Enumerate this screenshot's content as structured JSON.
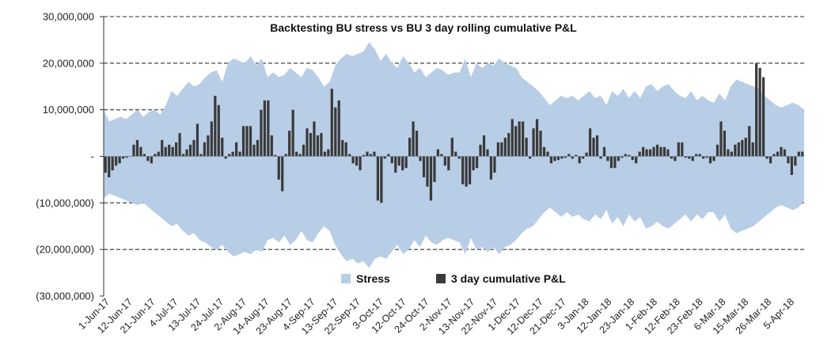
{
  "chart_data": {
    "type": "bar",
    "title": "Backtesting BU stress vs BU 3 day rolling cumulative P&L",
    "xlabel": "",
    "ylabel": "",
    "ylim": [
      -30000000,
      30000000
    ],
    "yticks": [
      {
        "value": 30000000,
        "label": "30,000,000"
      },
      {
        "value": 20000000,
        "label": "20,000,000"
      },
      {
        "value": 10000000,
        "label": "10,000,000"
      },
      {
        "value": 0,
        "label": "-"
      },
      {
        "value": -10000000,
        "label": "(10,000,000)"
      },
      {
        "value": -20000000,
        "label": "(20,000,000)"
      },
      {
        "value": -30000000,
        "label": "(30,000,000)"
      }
    ],
    "xticks": [
      "1-Jun-17",
      "12-Jun-17",
      "21-Jun-17",
      "4-Jul-17",
      "13-Jul-17",
      "24-Jul-17",
      "2-Aug-17",
      "14-Aug-17",
      "23-Aug-17",
      "4-Sep-17",
      "13-Sep-17",
      "22-Sep-17",
      "3-Oct-17",
      "12-Oct-17",
      "24-Oct-17",
      "2-Nov-17",
      "13-Nov-17",
      "22-Nov-17",
      "1-Dec-17",
      "12-Dec-17",
      "21-Dec-17",
      "3-Jan-18",
      "12-Jan-18",
      "23-Jan-18",
      "1-Feb-18",
      "12-Feb-18",
      "23-Feb-18",
      "6-Mar-18",
      "15-Mar-18",
      "26-Mar-18",
      "5-Apr-18"
    ],
    "grid": "horizontal-dashed",
    "legend": {
      "position": "bottom-center",
      "entries": [
        {
          "name": "Stress",
          "color": "#b8cde6",
          "kind": "area"
        },
        {
          "name": "3 day cumulative P&L",
          "color": "#3a3a3a",
          "kind": "bar"
        }
      ]
    },
    "series": [
      {
        "name": "Stress",
        "type": "area",
        "color": "#b8cde6",
        "values_upper": [
          10000000,
          7500000,
          8000000,
          8500000,
          8000000,
          9000000,
          10000000,
          8500000,
          9500000,
          10000000,
          9000000,
          11000000,
          14000000,
          13000000,
          14500000,
          16000000,
          15000000,
          15500000,
          17000000,
          18000000,
          18500000,
          16000000,
          20000000,
          21000000,
          20500000,
          20000000,
          21500000,
          19500000,
          21000000,
          17000000,
          18000000,
          17000000,
          17500000,
          19000000,
          18000000,
          17000000,
          19000000,
          18500000,
          17000000,
          15000000,
          16000000,
          19500000,
          21000000,
          22000000,
          21500000,
          22000000,
          22500000,
          24500000,
          23000000,
          20500000,
          22000000,
          20000000,
          19000000,
          21500000,
          20000000,
          18000000,
          19000000,
          17000000,
          18000000,
          19000000,
          18500000,
          17500000,
          18000000,
          18000000,
          21000000,
          17000000,
          20000000,
          19000000,
          20000000,
          19500000,
          21000000,
          20000000,
          19500000,
          19000000,
          17000000,
          16000000,
          15000000,
          14000000,
          12500000,
          11000000,
          12000000,
          13000000,
          12500000,
          13000000,
          12000000,
          13000000,
          14000000,
          12500000,
          13000000,
          11000000,
          14000000,
          13000000,
          14500000,
          12500000,
          14000000,
          12500000,
          15000000,
          15500000,
          14000000,
          15000000,
          15500000,
          14000000,
          13000000,
          12500000,
          14000000,
          12000000,
          13000000,
          12000000,
          11500000,
          13500000,
          12000000,
          15000000,
          16500000,
          16000000,
          15500000,
          15000000,
          14500000,
          13000000,
          12000000,
          11000000,
          10500000,
          11000000,
          11500000,
          11000000,
          10000000
        ],
        "values_lower": [
          -9000000,
          -8000000,
          -8500000,
          -9000000,
          -9500000,
          -10000000,
          -10500000,
          -10000000,
          -11000000,
          -12000000,
          -13000000,
          -14000000,
          -15000000,
          -14500000,
          -16000000,
          -17000000,
          -16500000,
          -18000000,
          -18500000,
          -19500000,
          -20000000,
          -19000000,
          -20500000,
          -21500000,
          -21000000,
          -20500000,
          -21000000,
          -20000000,
          -20500000,
          -18000000,
          -17500000,
          -18500000,
          -17000000,
          -19000000,
          -18000000,
          -16000000,
          -18000000,
          -18500000,
          -16500000,
          -15000000,
          -16000000,
          -19000000,
          -21000000,
          -22500000,
          -22000000,
          -23000000,
          -22500000,
          -24000000,
          -22000000,
          -21500000,
          -22000000,
          -20500000,
          -19000000,
          -21000000,
          -20000000,
          -18000000,
          -19500000,
          -17000000,
          -18500000,
          -19000000,
          -18000000,
          -17500000,
          -18000000,
          -18500000,
          -21000000,
          -17500000,
          -20000000,
          -19500000,
          -20500000,
          -19500000,
          -21000000,
          -19500000,
          -19000000,
          -18000000,
          -16500000,
          -15500000,
          -15000000,
          -13500000,
          -12000000,
          -11000000,
          -12000000,
          -13000000,
          -12000000,
          -13000000,
          -12500000,
          -13500000,
          -14000000,
          -12500000,
          -13500000,
          -11500000,
          -14500000,
          -13000000,
          -15000000,
          -12500000,
          -14000000,
          -13000000,
          -15500000,
          -15000000,
          -14000000,
          -15000000,
          -15500000,
          -14500000,
          -13500000,
          -12500000,
          -14000000,
          -12500000,
          -13500000,
          -12000000,
          -12000000,
          -14000000,
          -12500000,
          -15500000,
          -16500000,
          -16000000,
          -15500000,
          -15000000,
          -14000000,
          -13000000,
          -12000000,
          -11000000,
          -10500000,
          -11000000,
          -11500000,
          -11000000,
          -9500000
        ]
      },
      {
        "name": "3 day cumulative P&L",
        "type": "bar",
        "color": "#3a3a3a",
        "values": [
          -3500000,
          -4500000,
          -3000000,
          -2000000,
          -1500000,
          -500000,
          -300000,
          0,
          2500000,
          3500000,
          2000000,
          500000,
          -1000000,
          -1500000,
          500000,
          1000000,
          3500000,
          2000000,
          2500000,
          2000000,
          3000000,
          5000000,
          500000,
          1500000,
          2500000,
          3500000,
          7000000,
          500000,
          3000000,
          4500000,
          7500000,
          13000000,
          11000000,
          4000000,
          -500000,
          500000,
          1000000,
          3000000,
          1000000,
          6500000,
          6500000,
          6500000,
          2500000,
          3500000,
          10000000,
          12000000,
          12000000,
          4500000,
          300000,
          -5000000,
          -7500000,
          500000,
          5500000,
          10000000,
          1000000,
          500000,
          2500000,
          6000000,
          5000000,
          7500000,
          4500000,
          5000000,
          1000000,
          1500000,
          14500000,
          10500000,
          12000000,
          3500000,
          3000000,
          500000,
          -1500000,
          -2000000,
          -3000000,
          300000,
          1000000,
          500000,
          1000000,
          -9500000,
          -10000000,
          -500000,
          500000,
          -1500000,
          -3500000,
          -2000000,
          -3000000,
          -2500000,
          4000000,
          7500000,
          5500000,
          -1000000,
          -4500000,
          -6500000,
          -9500000,
          -5500000,
          1500000,
          500000,
          -2000000,
          -3000000,
          4000000,
          1000000,
          -500000,
          -6000000,
          -6500000,
          -6000000,
          -3000000,
          -2500000,
          2500000,
          4500000,
          1500000,
          -5000000,
          -3500000,
          3000000,
          3000000,
          4000000,
          5000000,
          8000000,
          6500000,
          7500000,
          7500000,
          4000000,
          -500000,
          6000000,
          8000000,
          5500000,
          2000000,
          1000000,
          -1500000,
          -1000000,
          -800000,
          -500000,
          -300000,
          500000,
          -500000,
          300000,
          -1500000,
          -500000,
          800000,
          6000000,
          4000000,
          4500000,
          -500000,
          2000000,
          -1000000,
          -2500000,
          -2500000,
          -1000000,
          -300000,
          500000,
          300000,
          -800000,
          -1500000,
          1000000,
          2000000,
          1500000,
          1500000,
          2000000,
          2500000,
          2000000,
          2000000,
          1500000,
          -500000,
          -1000000,
          3000000,
          3000000,
          -300000,
          -500000,
          -1000000,
          500000,
          500000,
          -500000,
          -300000,
          -1500000,
          -1000000,
          2500000,
          7500000,
          5500000,
          1500000,
          1000000,
          2500000,
          3000000,
          3500000,
          4000000,
          6500000,
          3000000,
          20000000,
          19000000,
          17000000,
          -500000,
          -1500000,
          500000,
          1000000,
          2000000,
          1500000,
          -1500000,
          -4000000,
          -2000000,
          1000000,
          1000000
        ]
      }
    ]
  }
}
